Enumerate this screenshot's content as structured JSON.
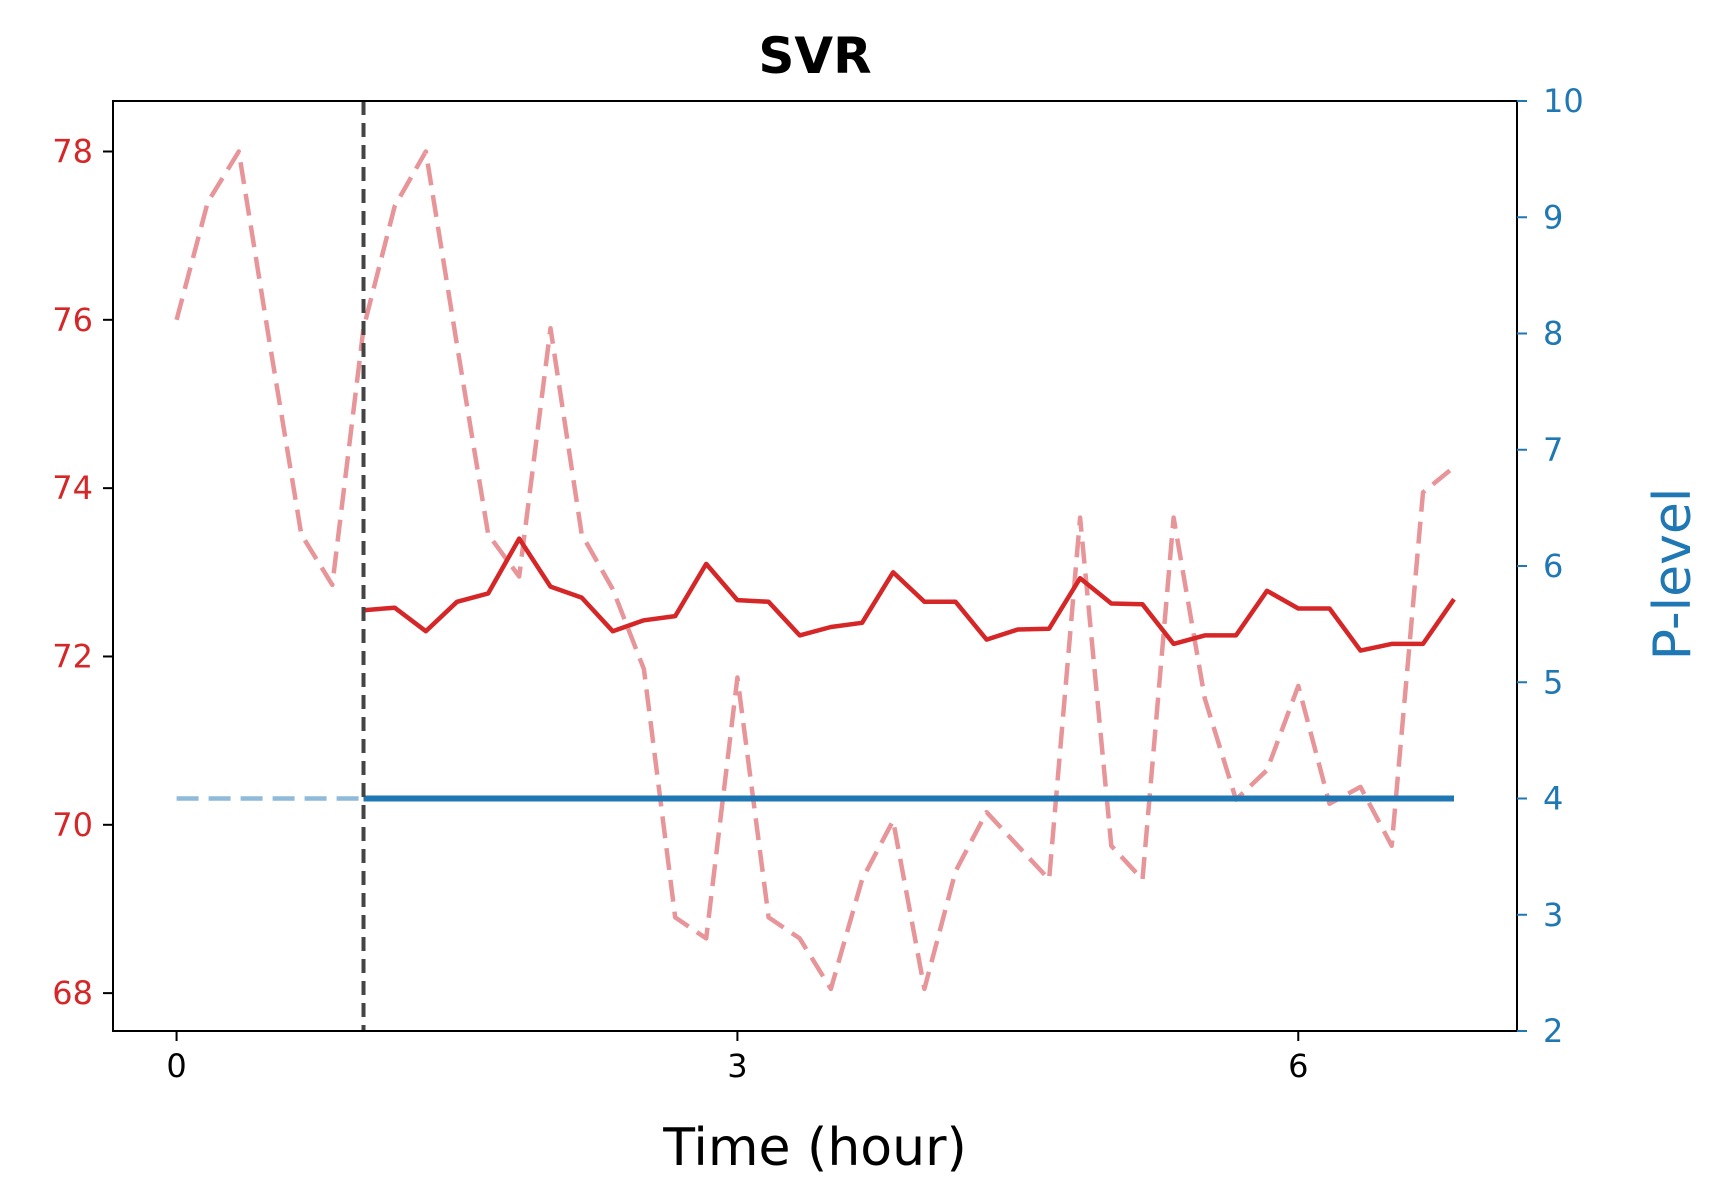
{
  "chart_data": {
    "type": "line",
    "title": "SVR",
    "xlabel": "Time (hour)",
    "ylabel_left": "",
    "ylabel_right": "P-level",
    "xlim": [
      -0.34,
      7.17
    ],
    "ylim_left": [
      67.55,
      78.6
    ],
    "ylim_right": [
      2,
      10
    ],
    "xticks": [
      0,
      3,
      6
    ],
    "yticks_left": [
      68,
      70,
      72,
      74,
      76,
      78
    ],
    "yticks_right": [
      2,
      3,
      4,
      5,
      6,
      7,
      8,
      9,
      10
    ],
    "grid": false,
    "legend": null,
    "vline_x": 1.0,
    "colors": {
      "left_axis": "#d62728",
      "right_axis": "#1f77b4",
      "observed_dashed": "#e8959a",
      "predicted": "#d62728",
      "p_level_solid": "#1f77b4",
      "p_level_dashed": "#8fbad9",
      "vline": "#444444"
    },
    "series": [
      {
        "axis": "left",
        "style": "dashed",
        "x": [
          0,
          0.167,
          0.333,
          0.5,
          0.667,
          0.833,
          1.0,
          1.167,
          1.333,
          1.5,
          1.667,
          1.833,
          2.0,
          2.167,
          2.333,
          2.5,
          2.667,
          2.833,
          3.0,
          3.167,
          3.333,
          3.5,
          3.667,
          3.833,
          4.0,
          4.167,
          4.333,
          4.5,
          4.667,
          4.833,
          5.0,
          5.167,
          5.333,
          5.5,
          5.667,
          5.833,
          6.0,
          6.167,
          6.333,
          6.5,
          6.667,
          6.833
        ],
        "values": [
          76.0,
          77.4,
          78.0,
          75.7,
          73.45,
          72.85,
          75.9,
          77.35,
          78.0,
          75.7,
          73.45,
          72.95,
          75.9,
          73.45,
          72.8,
          71.85,
          68.9,
          68.65,
          71.75,
          68.9,
          68.65,
          68.05,
          69.35,
          70.05,
          68.05,
          69.45,
          70.15,
          69.75,
          69.35,
          73.65,
          69.75,
          69.35,
          73.65,
          71.5,
          70.3,
          70.65,
          71.65,
          70.25,
          70.45,
          69.75,
          73.95,
          74.25
        ]
      },
      {
        "axis": "left",
        "style": "solid",
        "x": [
          1.0,
          1.167,
          1.333,
          1.5,
          1.667,
          1.833,
          2.0,
          2.167,
          2.333,
          2.5,
          2.667,
          2.833,
          3.0,
          3.167,
          3.333,
          3.5,
          3.667,
          3.833,
          4.0,
          4.167,
          4.333,
          4.5,
          4.667,
          4.833,
          5.0,
          5.167,
          5.333,
          5.5,
          5.667,
          5.833,
          6.0,
          6.167,
          6.333,
          6.5,
          6.667,
          6.833
        ],
        "values": [
          72.55,
          72.58,
          72.3,
          72.65,
          72.75,
          73.4,
          72.83,
          72.7,
          72.3,
          72.43,
          72.48,
          73.1,
          72.67,
          72.65,
          72.25,
          72.35,
          72.4,
          73.0,
          72.65,
          72.65,
          72.2,
          72.32,
          72.33,
          72.93,
          72.63,
          72.62,
          72.15,
          72.25,
          72.25,
          72.78,
          72.57,
          72.57,
          72.07,
          72.15,
          72.15,
          72.68
        ]
      },
      {
        "axis": "right",
        "style": "dashed",
        "x": [
          0,
          1.0
        ],
        "values": [
          4,
          4
        ]
      },
      {
        "axis": "right",
        "style": "solid",
        "x": [
          1.0,
          6.833
        ],
        "values": [
          4,
          4
        ]
      }
    ]
  }
}
